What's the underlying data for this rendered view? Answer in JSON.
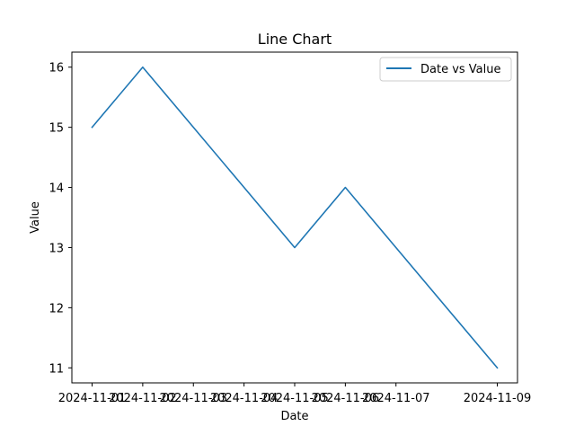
{
  "chart_data": {
    "type": "line",
    "title": "Line Chart",
    "xlabel": "Date",
    "ylabel": "Value",
    "x": [
      "2024-11-01",
      "2024-11-02",
      "2024-11-03",
      "2024-11-04",
      "2024-11-05",
      "2024-11-06",
      "2024-11-07",
      "2024-11-09"
    ],
    "xticks": [
      "2024-11-01",
      "2024-11-02",
      "2024-11-03",
      "2024-11-04",
      "2024-11-05",
      "2024-11-06",
      "2024-11-07",
      "2024-11-09"
    ],
    "yticks": [
      11,
      12,
      13,
      14,
      15,
      16
    ],
    "ylim": [
      10.75,
      16.25
    ],
    "grid": false,
    "legend_position": "top-right",
    "series": [
      {
        "name": "Date vs Value",
        "color": "#1f77b4",
        "values": [
          15,
          16,
          15,
          14,
          13,
          14,
          13,
          11
        ]
      }
    ]
  }
}
